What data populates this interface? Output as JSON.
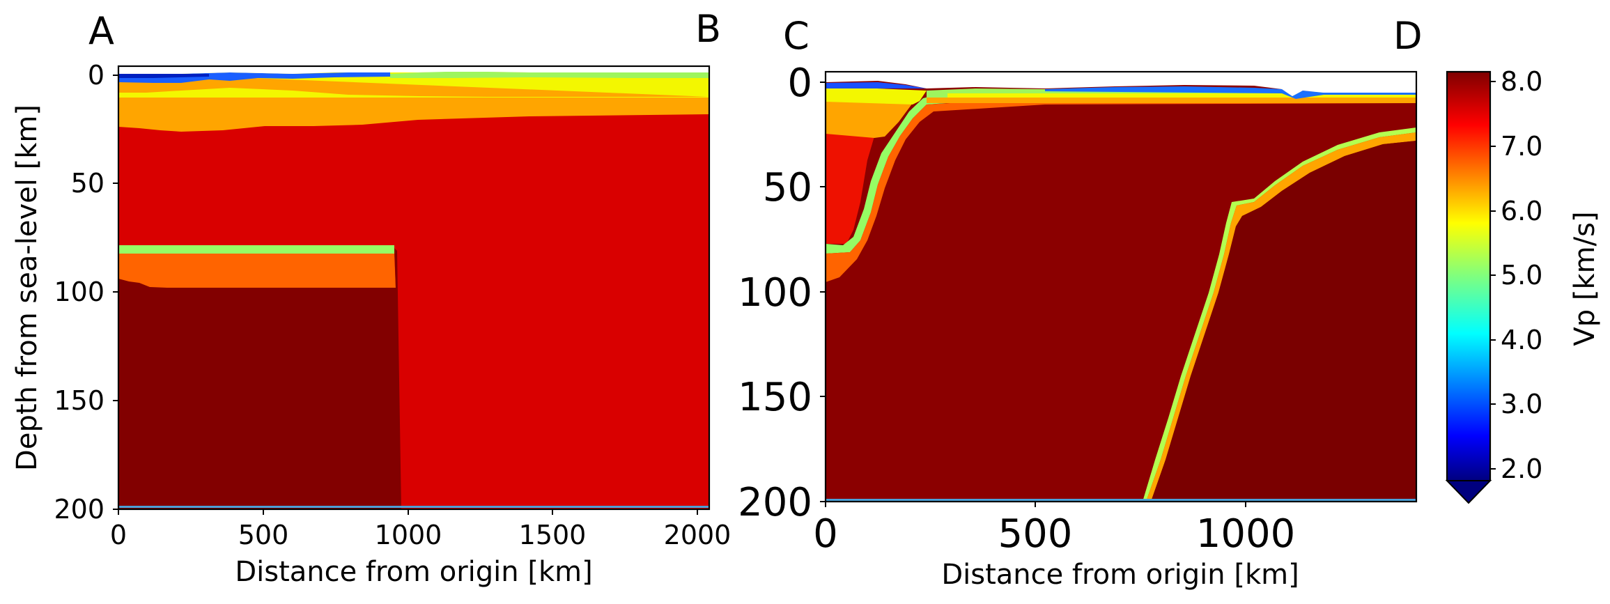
{
  "chart_data": [
    {
      "type": "heatmap",
      "panel": "left",
      "corner_labels": [
        "A",
        "B"
      ],
      "xlabel": "Distance from origin [km]",
      "ylabel": "Depth from sea-level [km]",
      "xlim": [
        0,
        2040
      ],
      "ylim": [
        200,
        -4
      ],
      "xticks": [
        0,
        500,
        1000,
        1500,
        2000
      ],
      "yticks": [
        0,
        50,
        100,
        150,
        200
      ],
      "layers": [
        {
          "name": "water/sediment",
          "vp": 2.5,
          "color": "#1a5fff",
          "depth_top": -2,
          "depth_bottom": 3
        },
        {
          "name": "upper crust",
          "vp": 6.0,
          "color": "#f3f700",
          "depth_top": 3,
          "depth_bottom": 10
        },
        {
          "name": "lower crust",
          "vp": 6.8,
          "color": "#ffa500",
          "depth_top": 10,
          "depth_bottom": 22
        },
        {
          "name": "mantle",
          "vp": 7.6,
          "color": "#d90000"
        },
        {
          "name": "slab top",
          "vp": 5.2,
          "color": "#96fd64",
          "x_range": [
            0,
            960
          ],
          "depth_top": 78,
          "depth_bottom": 83
        },
        {
          "name": "slab crust",
          "vp": 7.0,
          "color": "#ff6400",
          "x_range": [
            0,
            960
          ],
          "depth_top": 83,
          "depth_bottom": 98
        },
        {
          "name": "slab mantle",
          "vp": 8.1,
          "color": "#820000",
          "x_range": [
            0,
            970
          ],
          "depth_top": 98,
          "depth_bottom": 200
        }
      ]
    },
    {
      "type": "heatmap",
      "panel": "right",
      "corner_labels": [
        "C",
        "D"
      ],
      "xlabel": "Distance from origin [km]",
      "ylabel": "",
      "xlim": [
        0,
        1400
      ],
      "ylim": [
        200,
        -5
      ],
      "xticks": [
        0,
        500,
        1000
      ],
      "yticks": [
        0,
        50,
        100,
        150,
        200
      ],
      "layers": [
        {
          "name": "water/sediment",
          "vp": 2.5,
          "color": "#1a5fff"
        },
        {
          "name": "upper crust",
          "vp": 6.0,
          "color": "#f3f700"
        },
        {
          "name": "lower crust",
          "vp": 6.8,
          "color": "#ffa500"
        },
        {
          "name": "wedge mantle",
          "vp": 7.6,
          "color": "#ee1100"
        },
        {
          "name": "slab mantle",
          "vp": 8.1,
          "color": "#8b0000"
        },
        {
          "name": "second slab crust",
          "vp": 5.5,
          "color": "#b4ff50"
        }
      ]
    }
  ],
  "colorbar": {
    "label": "Vp [km/s]",
    "min": 1.75,
    "max": 8.1,
    "ticks": [
      "2.0",
      "3.0",
      "4.0",
      "5.0",
      "6.0",
      "7.0",
      "8.0"
    ],
    "colormap": "jet",
    "extend": "min"
  }
}
